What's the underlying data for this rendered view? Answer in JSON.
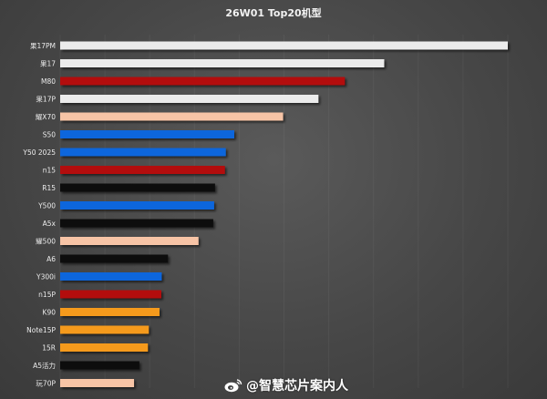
{
  "chart_data": {
    "type": "bar",
    "orientation": "horizontal",
    "title": "26W01 Top20机型",
    "xlabel": "",
    "ylabel": "",
    "grid": true,
    "legend": "none",
    "xlim": [
      0,
      100
    ],
    "categories": [
      "果17PM",
      "果17",
      "M80",
      "果17P",
      "耀X70",
      "S50",
      "Y50 2025",
      "n15",
      "R15",
      "Y500",
      "A5x",
      "耀500",
      "A6",
      "Y300i",
      "n15P",
      "K90",
      "Note15P",
      "15R",
      "A5活力",
      "玩70P"
    ],
    "values": [
      100,
      72.4,
      63.6,
      57.7,
      49.8,
      38.9,
      37.0,
      36.8,
      34.6,
      34.4,
      34.2,
      30.9,
      24.1,
      22.7,
      22.6,
      22.2,
      19.8,
      19.6,
      17.7,
      16.5
    ],
    "bar_colors": [
      "#ebebeb",
      "#ebebeb",
      "#b30b0b",
      "#ebebeb",
      "#f7c4a6",
      "#0d66dc",
      "#0d66dc",
      "#b30b0b",
      "#0b0b0b",
      "#0d66dc",
      "#0b0b0b",
      "#f7c4a6",
      "#0b0b0b",
      "#0d66dc",
      "#b30b0b",
      "#f59a1a",
      "#f59a1a",
      "#f59a1a",
      "#0b0b0b",
      "#f7c4a6"
    ]
  },
  "watermark": {
    "text": "@智慧芯片案内人",
    "icon": "weibo-icon"
  }
}
